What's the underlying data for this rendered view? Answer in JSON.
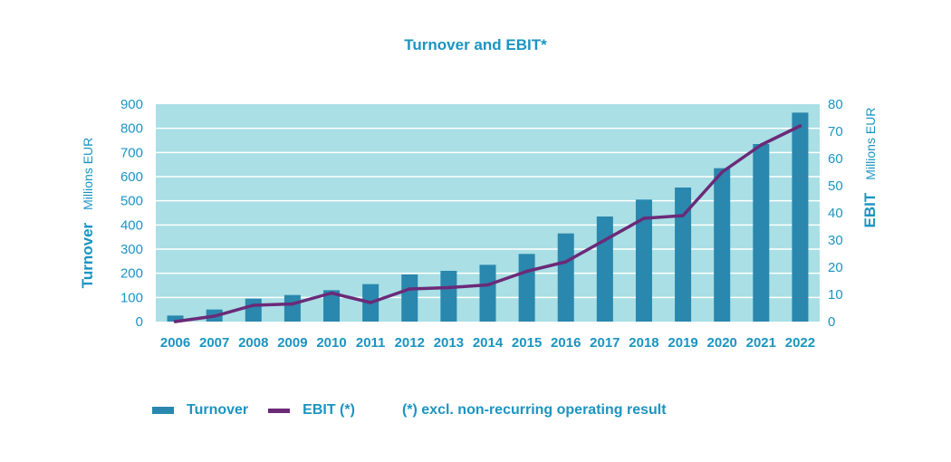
{
  "chart_data": {
    "type": "bar",
    "title": "Turnover and EBIT*",
    "categories": [
      "2006",
      "2007",
      "2008",
      "2009",
      "2010",
      "2011",
      "2012",
      "2013",
      "2014",
      "2015",
      "2016",
      "2017",
      "2018",
      "2019",
      "2020",
      "2021",
      "2022"
    ],
    "series": [
      {
        "name": "Turnover",
        "type": "bar",
        "axis": "left",
        "values": [
          25,
          50,
          95,
          110,
          130,
          155,
          195,
          210,
          235,
          280,
          365,
          435,
          505,
          555,
          635,
          735,
          865
        ]
      },
      {
        "name": "EBIT (*)",
        "type": "line",
        "axis": "right",
        "values": [
          0,
          2,
          6,
          6.5,
          10.5,
          7,
          12,
          12.5,
          13.5,
          18.5,
          22,
          30,
          38,
          39,
          55,
          65,
          72
        ]
      }
    ],
    "left_axis": {
      "label": "Turnover",
      "unit": "Millions EUR",
      "ylim": [
        0,
        900
      ],
      "ticks": [
        "0",
        "100",
        "200",
        "300",
        "400",
        "500",
        "600",
        "700",
        "800",
        "900"
      ]
    },
    "right_axis": {
      "label": "EBIT",
      "unit": "Millions EUR",
      "ylim": [
        0,
        80
      ],
      "ticks": [
        "0",
        "10",
        "20",
        "30",
        "40",
        "50",
        "60",
        "70",
        "80"
      ]
    },
    "grid": true,
    "legend_position": "bottom-left",
    "note": "(*) excl. non-recurring operating result",
    "colors": {
      "plot_background": "#a9dfe5",
      "grid": "#ffffff",
      "bar": "#2a87ad",
      "line": "#6b2a78",
      "text": "#1b94c1"
    }
  }
}
